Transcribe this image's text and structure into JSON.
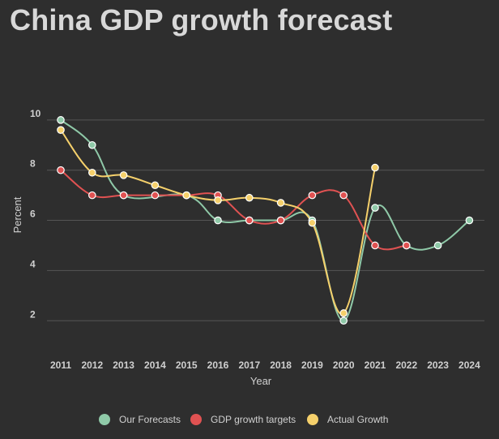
{
  "chart_data": {
    "type": "line",
    "title": "China GDP growth forecast",
    "xlabel": "Year",
    "ylabel": "Percent",
    "categories": [
      "2011",
      "2012",
      "2013",
      "2014",
      "2015",
      "2016",
      "2017",
      "2018",
      "2019",
      "2020",
      "2021",
      "2022",
      "2023",
      "2024"
    ],
    "y_ticks": [
      2,
      4,
      6,
      8,
      10
    ],
    "ylim": [
      1.2,
      10.9
    ],
    "grid": true,
    "legend_position": "bottom",
    "series": [
      {
        "name": "Our Forecasts",
        "color": "#8fc9a8",
        "values": [
          10,
          9,
          7,
          null,
          7,
          6,
          6,
          6,
          6,
          2,
          6.5,
          5,
          5,
          6
        ]
      },
      {
        "name": "GDP growth targets",
        "color": "#e05252",
        "values": [
          8,
          7,
          7,
          7,
          7,
          7,
          6,
          6,
          7,
          7,
          5,
          5,
          null,
          null
        ]
      },
      {
        "name": "Actual Growth",
        "color": "#f5d06b",
        "values": [
          9.6,
          7.9,
          7.8,
          7.4,
          7.0,
          6.8,
          6.9,
          6.7,
          5.9,
          2.3,
          8.1,
          null,
          null,
          null
        ]
      }
    ]
  }
}
